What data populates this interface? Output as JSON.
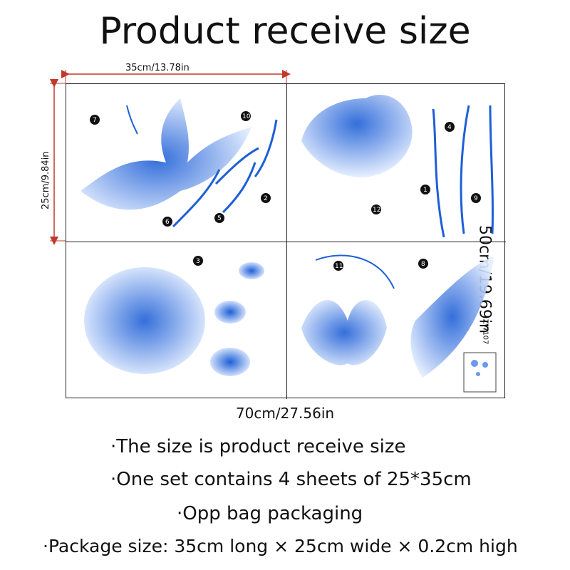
{
  "title": "Product receive size",
  "dimensions": {
    "sheet_width": "35cm/13.78in",
    "sheet_height": "25cm/9.84in",
    "total_height": "50cm/19.69in",
    "total_width": "70cm/27.56in"
  },
  "sheet_code": "ZW107",
  "markers": [
    "1",
    "2",
    "3",
    "4",
    "5",
    "6",
    "7",
    "8",
    "9",
    "10",
    "11",
    "12"
  ],
  "notes": [
    "·The size is product receive size",
    "·One set contains 4 sheets of 25*35cm",
    "·Opp bag packaging",
    "·Package size: 35cm long × 25cm wide × 0.2cm high"
  ],
  "colors": {
    "accent": "#1e5fd6",
    "light": "#cfe0ff",
    "dimension_line": "#c0392b"
  }
}
